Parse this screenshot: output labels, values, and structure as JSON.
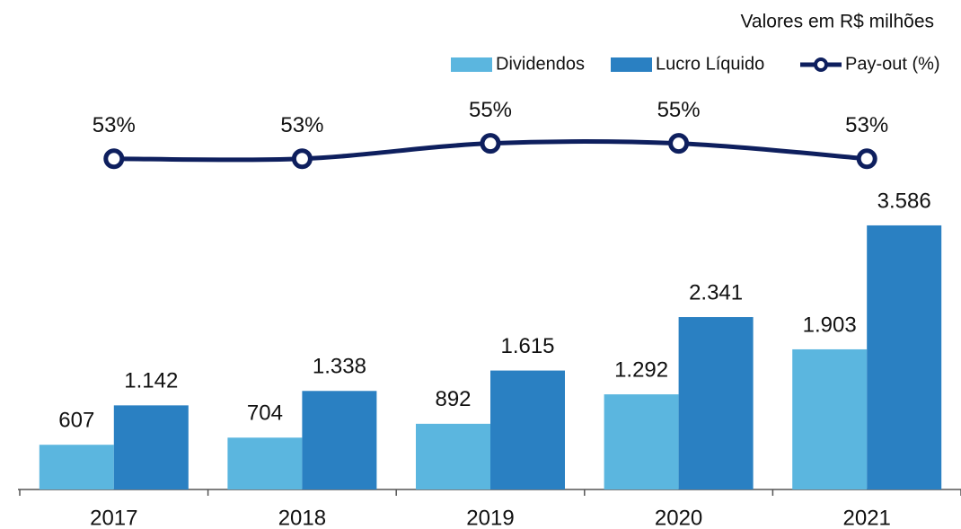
{
  "chart_data": {
    "type": "bar",
    "subtitle": "Valores em R$ milhões",
    "categories": [
      "2017",
      "2018",
      "2019",
      "2020",
      "2021"
    ],
    "series": [
      {
        "name": "Dividendos",
        "color": "#5bb6df",
        "values": [
          607,
          704,
          892,
          1292,
          1903
        ],
        "value_labels": [
          "607",
          "704",
          "892",
          "1.292",
          "1.903"
        ]
      },
      {
        "name": "Lucro Líquido",
        "color": "#2a80c2",
        "values": [
          1142,
          1338,
          1615,
          2341,
          3586
        ],
        "value_labels": [
          "1.142",
          "1.338",
          "1.615",
          "2.341",
          "3.586"
        ]
      },
      {
        "name": "Pay-out (%)",
        "type": "line",
        "axis": "y2",
        "color": "#0e1f5e",
        "values": [
          53,
          53,
          55,
          55,
          53
        ],
        "value_labels": [
          "53%",
          "53%",
          "55%",
          "55%",
          "53%"
        ]
      }
    ],
    "ylim": [
      0,
      4000
    ],
    "y2lim": [
      45,
      60
    ],
    "legend": "top-right"
  }
}
